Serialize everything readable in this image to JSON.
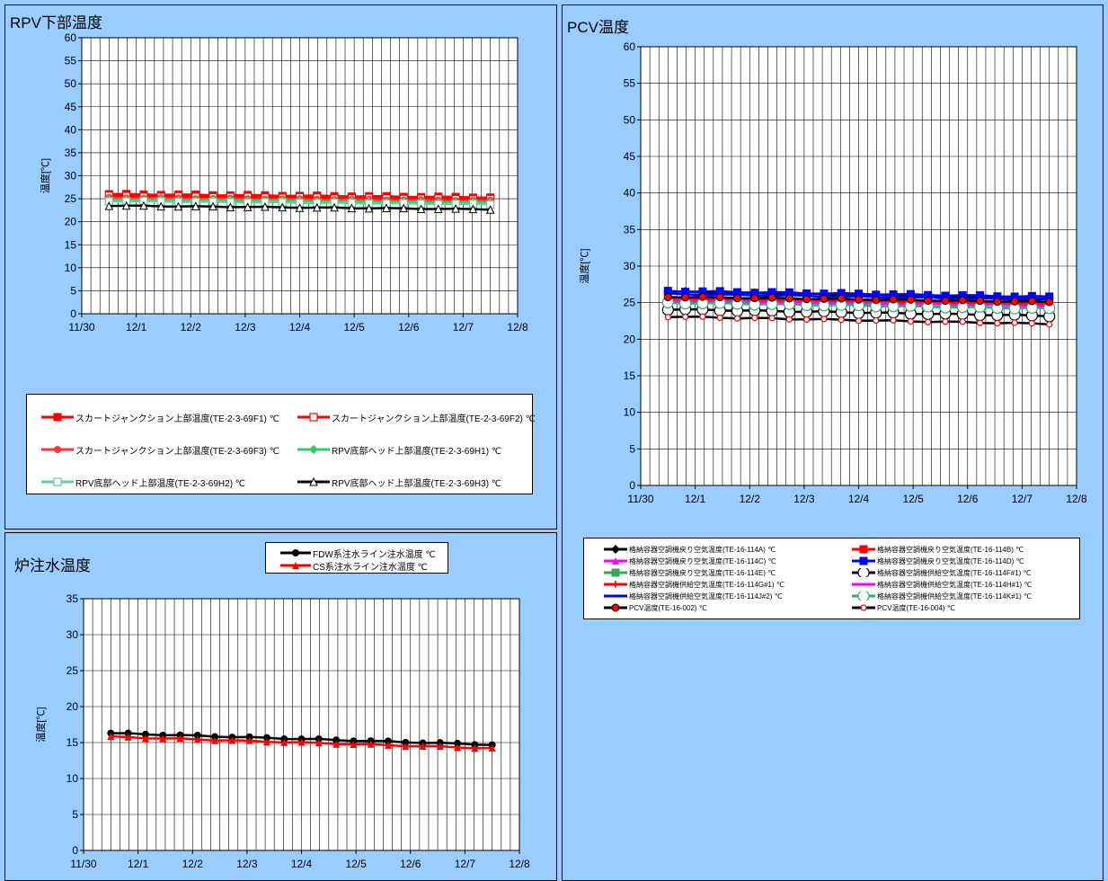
{
  "panels": {
    "rpv": {
      "title": "RPV下部温度"
    },
    "pcv": {
      "title": "PCV温度"
    },
    "feed": {
      "title": "炉注水温度"
    }
  },
  "chart_data": [
    {
      "id": "rpv",
      "type": "line",
      "title": "RPV下部温度",
      "ylabel": "温度[℃]",
      "xlabel": "",
      "xlim": [
        "11/30",
        "12/8"
      ],
      "ylim": [
        0,
        60
      ],
      "yticks": [
        0,
        5,
        10,
        15,
        20,
        25,
        30,
        35,
        40,
        45,
        50,
        55,
        60
      ],
      "xticks": [
        "11/30",
        "12/1",
        "12/2",
        "12/3",
        "12/4",
        "12/5",
        "12/6",
        "12/7",
        "12/8"
      ],
      "grid": true,
      "legend_position": "bottom",
      "series": [
        {
          "name": "スカートジャンクション上部温度(TE-2-3-69F1) ℃",
          "color": "#ff0000",
          "marker": "square-filled",
          "start": 26.0,
          "end": 25.3
        },
        {
          "name": "スカートジャンクション上部温度(TE-2-3-69F2) ℃",
          "color": "#ff0000",
          "marker": "square-open",
          "start": 25.6,
          "end": 24.9
        },
        {
          "name": "スカートジャンクション上部温度(TE-2-3-69F3) ℃",
          "color": "#ff3333",
          "marker": "circle-filled",
          "start": 25.2,
          "end": 24.6
        },
        {
          "name": "RPV底部ヘッド上部温度(TE-2-3-69H1) ℃",
          "color": "#33cc66",
          "marker": "diamond-filled",
          "start": 24.9,
          "end": 24.2
        },
        {
          "name": "RPV底部ヘッド上部温度(TE-2-3-69H2) ℃",
          "color": "#66cc99",
          "marker": "square-open",
          "start": 24.5,
          "end": 23.8
        },
        {
          "name": "RPV底部ヘッド上部温度(TE-2-3-69H3) ℃",
          "color": "#000000",
          "marker": "triangle-open",
          "start": 23.5,
          "end": 22.7
        }
      ]
    },
    {
      "id": "pcv",
      "type": "line",
      "title": "PCV温度",
      "ylabel": "温度[℃]",
      "xlabel": "",
      "xlim": [
        "11/30",
        "12/8"
      ],
      "ylim": [
        0,
        60
      ],
      "yticks": [
        0,
        5,
        10,
        15,
        20,
        25,
        30,
        35,
        40,
        45,
        50,
        55,
        60
      ],
      "xticks": [
        "11/30",
        "12/1",
        "12/2",
        "12/3",
        "12/4",
        "12/5",
        "12/6",
        "12/7",
        "12/8"
      ],
      "grid": true,
      "legend_position": "bottom",
      "series": [
        {
          "name": "格納容器空調機戻り空気温度(TE-16-114A) ℃",
          "color": "#000000",
          "marker": "diamond-filled",
          "start": 26.5,
          "end": 25.6
        },
        {
          "name": "格納容器空調機戻り空気温度(TE-16-114B) ℃",
          "color": "#ff0000",
          "marker": "square-filled",
          "start": 25.7,
          "end": 25.0
        },
        {
          "name": "格納容器空調機戻り空気温度(TE-16-114C) ℃",
          "color": "#ff00ff",
          "marker": "triangle-filled",
          "start": 25.4,
          "end": 24.7
        },
        {
          "name": "格納容器空調機戻り空気温度(TE-16-114D) ℃",
          "color": "#0000ff",
          "marker": "square-filled",
          "start": 26.6,
          "end": 25.8
        },
        {
          "name": "格納容器空調機戻り空気温度(TE-16-114E) ℃",
          "color": "#33aa55",
          "marker": "square-filled",
          "start": 25.2,
          "end": 24.3
        },
        {
          "name": "格納容器空調機供給空気温度(TE-16-114F#1) ℃",
          "color": "#000000",
          "marker": "circle-open",
          "start": 24.1,
          "end": 23.2
        },
        {
          "name": "格納容器空調機供給空気温度(TE-16-114G#1) ℃",
          "color": "#ff0000",
          "marker": "plus",
          "start": 25.5,
          "end": 24.8
        },
        {
          "name": "格納容器空調機供給空気温度(TE-16-114H#1) ℃",
          "color": "#ff00ff",
          "marker": "none",
          "start": 25.3,
          "end": 24.6
        },
        {
          "name": "格納容器空調機供給空気温度(TE-16-114J#2) ℃",
          "color": "#0000ff",
          "marker": "none",
          "start": 26.2,
          "end": 25.4
        },
        {
          "name": "格納容器空調機供給空気温度(TE-16-114K#1) ℃",
          "color": "#33aa77",
          "marker": "circle-open",
          "start": 25.0,
          "end": 24.2
        },
        {
          "name": "PCV温度(TE-16-002) ℃",
          "color": "#000000",
          "marker": "circle-filled-red",
          "start": 25.8,
          "end": 25.1
        },
        {
          "name": "PCV温度(TE-16-004) ℃",
          "color": "#000000",
          "marker": "circle-open-red",
          "start": 23.1,
          "end": 22.1
        }
      ]
    },
    {
      "id": "feed",
      "type": "line",
      "title": "炉注水温度",
      "ylabel": "温度[℃]",
      "xlabel": "",
      "xlim": [
        "11/30",
        "12/8"
      ],
      "ylim": [
        0,
        35
      ],
      "yticks": [
        0,
        5,
        10,
        15,
        20,
        25,
        30,
        35
      ],
      "xticks": [
        "11/30",
        "12/1",
        "12/2",
        "12/3",
        "12/4",
        "12/5",
        "12/6",
        "12/7",
        "12/8"
      ],
      "grid": true,
      "legend_position": "top",
      "series": [
        {
          "name": "FDW系注水ライン注水温度 ℃",
          "color": "#000000",
          "marker": "circle-filled",
          "start": 16.3,
          "end": 14.7
        },
        {
          "name": "CS系注水ライン注水温度 ℃",
          "color": "#ff0000",
          "marker": "triangle-filled",
          "start": 15.8,
          "end": 14.2
        }
      ]
    }
  ]
}
